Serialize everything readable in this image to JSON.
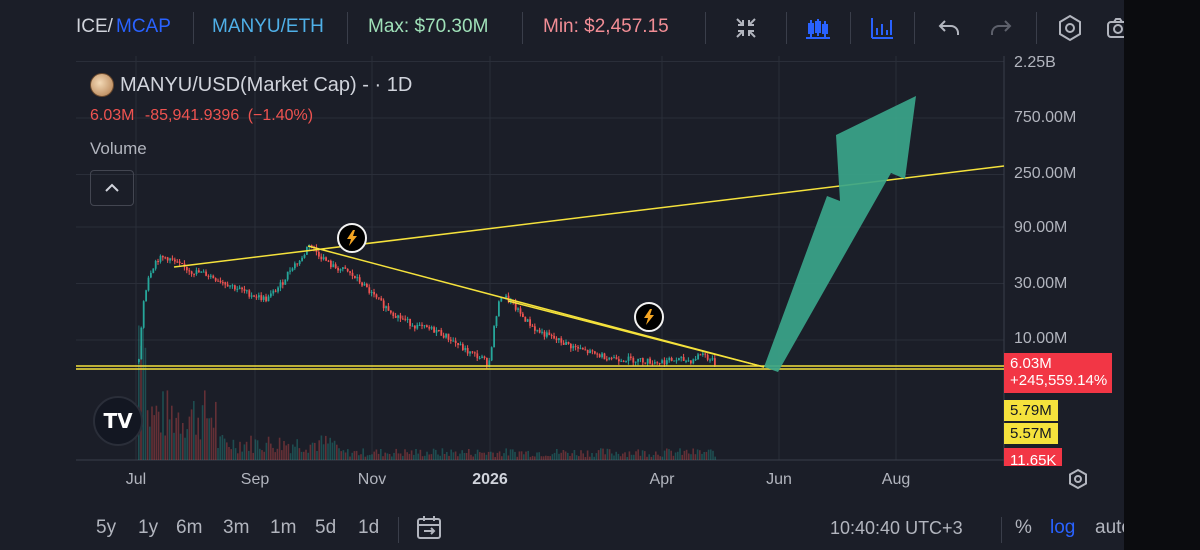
{
  "toolbar": {
    "price_mcap_partial": "ICE/",
    "mcap": "MCAP",
    "pair_eth": "MANYU/ETH",
    "max": "Max: $70.30M",
    "min": "Min: $2,457.15",
    "icons": [
      "fullscreen-icon",
      "candles-icon",
      "indicators-icon",
      "undo-icon",
      "redo-icon",
      "settings-icon",
      "screenshot-icon"
    ]
  },
  "legend": {
    "title": "MANYU/USD(Market Cap) - · 1D",
    "last": "6.03M",
    "change": "-85,941.9396",
    "change_pct": "(−1.40%)",
    "volume_label": "Volume"
  },
  "price_scale": {
    "labels": [
      "2.25B",
      "750.00M",
      "250.00M",
      "90.00M",
      "30.00M",
      "10.00M"
    ],
    "current_price": "6.03M",
    "current_change": "+245,559.14%",
    "tag_1": "5.79M",
    "tag_2": "5.57M",
    "volume_tag": "11.65K"
  },
  "time_axis": {
    "labels": [
      "Jul",
      "Sep",
      "Nov",
      "2026",
      "Apr",
      "Jun",
      "Aug"
    ]
  },
  "bottom_bar": {
    "ranges": [
      "5y",
      "1y",
      "6m",
      "3m",
      "1m",
      "5d",
      "1d"
    ],
    "clock": "10:40:40 UTC+3",
    "percent": "%",
    "log": "log",
    "auto": "auto"
  },
  "colors": {
    "background": "#1b1e28",
    "up": "#26a69a",
    "down": "#ef5350",
    "trendline": "#f5e23c",
    "arrow": "#3aa58a",
    "accent": "#2962ff"
  },
  "chart_data": {
    "type": "candlestick",
    "symbol": "MANYU/USD",
    "x_range": [
      "Jul",
      "Aug"
    ],
    "x_ticks": [
      "Jul",
      "Sep",
      "Nov",
      "2026",
      "Apr",
      "Jun",
      "Aug"
    ],
    "y_scale": "log",
    "y_ticks": [
      "2.25B",
      "750.00M",
      "250.00M",
      "90.00M",
      "30.00M",
      "10.00M"
    ],
    "y_range": [
      1.0,
      2250.0
    ],
    "price_path": [
      {
        "x": "Jul",
        "y": 0.01
      },
      {
        "x": "Jul (early)",
        "y": 50.0
      },
      {
        "x": "Aug",
        "y": 33.0
      },
      {
        "x": "Sep",
        "y": 25.0
      },
      {
        "x": "Oct",
        "y": 65.0
      },
      {
        "x": "Nov",
        "y": 30.0
      },
      {
        "x": "Dec",
        "y": 9.0
      },
      {
        "x": "2026",
        "y": 25.0
      },
      {
        "x": "Feb",
        "y": 11.0
      },
      {
        "x": "Mar",
        "y": 6.5
      },
      {
        "x": "Apr",
        "y": 6.03
      }
    ],
    "annotations": {
      "upper_trendline": "rising yellow line from July high through late-Sept high, projected to ~250M in Aug",
      "lower_trendline": "descending yellow line from Oct high to ~6M in late May",
      "horizontal_support": "double yellow line near 6M",
      "projection_arrow": "large green arrow from ~6M (late May) toward ~2.25B (Aug)"
    },
    "grid": true,
    "legend_position": "top-left"
  }
}
